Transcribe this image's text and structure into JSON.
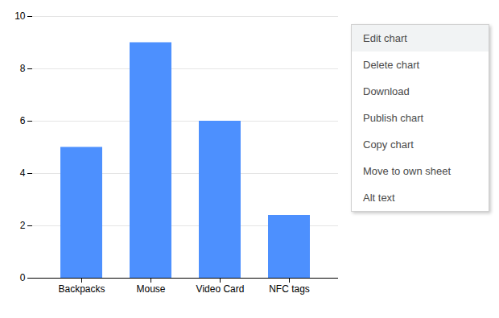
{
  "chart_data": {
    "type": "bar",
    "categories": [
      "Backpacks",
      "Mouse",
      "Video Card",
      "NFC tags"
    ],
    "values": [
      5,
      9,
      6,
      2.4
    ],
    "color": "#4d90fe",
    "ylim": [
      0,
      10
    ],
    "yticks": [
      0,
      2,
      4,
      6,
      8,
      10
    ],
    "grid": true,
    "annotations": [
      "Edit chart",
      "Delete chart",
      "Download",
      "Publish chart",
      "Copy chart",
      "Move to own sheet",
      "Alt text"
    ]
  }
}
